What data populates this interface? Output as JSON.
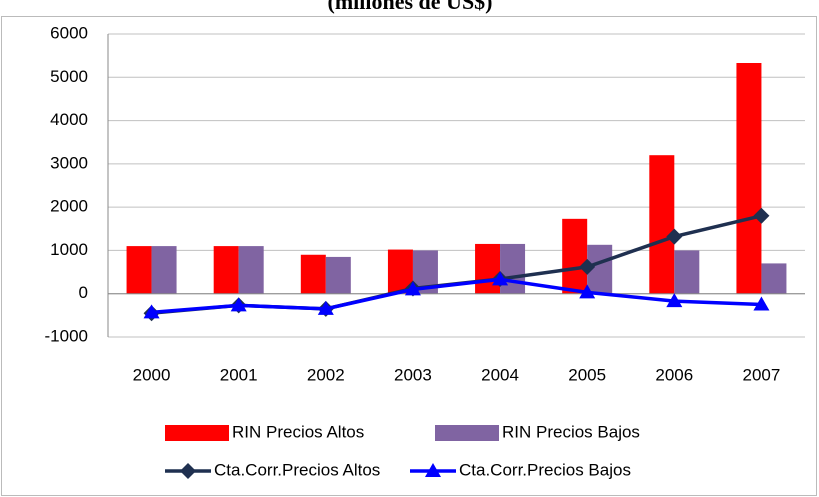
{
  "chart_data": {
    "type": "bar-line",
    "title": "(millones de US$)",
    "categories": [
      "2000",
      "2001",
      "2002",
      "2003",
      "2004",
      "2005",
      "2006",
      "2007"
    ],
    "series": [
      {
        "name": "RIN Precios Altos",
        "type": "bar",
        "color": "#ff0000",
        "values": [
          1100,
          1100,
          900,
          1020,
          1150,
          1730,
          3200,
          5330
        ]
      },
      {
        "name": "RIN Precios Bajos",
        "type": "bar",
        "color": "#8064a2",
        "values": [
          1100,
          1100,
          850,
          1000,
          1150,
          1130,
          1000,
          700
        ]
      },
      {
        "name": "Cta.Corr.Precios Altos",
        "type": "line",
        "marker": "diamond",
        "color": "#1f3050",
        "values": [
          -450,
          -270,
          -350,
          120,
          340,
          620,
          1320,
          1800
        ]
      },
      {
        "name": "Cta.Corr.Precios Bajos",
        "type": "line",
        "marker": "triangle",
        "color": "#0000ff",
        "values": [
          -430,
          -270,
          -350,
          100,
          330,
          30,
          -170,
          -250
        ]
      }
    ],
    "ylim": [
      -1000,
      6000
    ],
    "yticks": [
      -1000,
      0,
      1000,
      2000,
      3000,
      4000,
      5000,
      6000
    ],
    "grid": true,
    "legend": "bottom"
  }
}
